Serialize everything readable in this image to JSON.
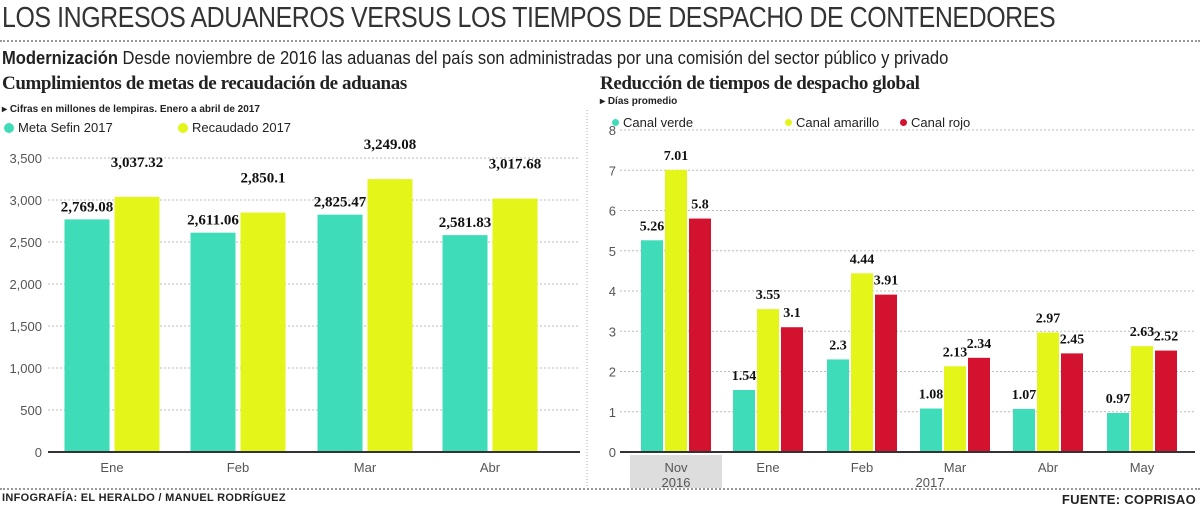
{
  "title": "LOS INGRESOS ADUANEROS VERSUS LOS TIEMPOS DE DESPACHO DE CONTENEDORES",
  "subtitle": {
    "lead": "Modernización",
    "text": "Desde noviembre de 2016 las aduanas del país son administradas por una comisión del sector público y privado"
  },
  "footer": {
    "credit": "INFOGRAFÍA: EL HERALDO / MANUEL RODRÍGUEZ",
    "source": "FUENTE: COPRISAO"
  },
  "colors": {
    "teal": "#3fdcb9",
    "yellow": "#e4f51a",
    "red": "#d3122f"
  },
  "chart_data": [
    {
      "type": "bar",
      "title": "Cumplimientos de metas de recaudación de aduanas",
      "note": "Cifras en millones de lempiras. Enero a abril de 2017",
      "categories": [
        "Ene",
        "Feb",
        "Mar",
        "Abr"
      ],
      "series": [
        {
          "name": "Meta Sefin 2017",
          "color": "#3fdcb9",
          "values": [
            2769.08,
            2611.06,
            2825.47,
            2581.83
          ],
          "labels": [
            "2,769.08",
            "2,611.06",
            "2,825.47",
            "2,581.83"
          ]
        },
        {
          "name": "Recaudado 2017",
          "color": "#e4f51a",
          "values": [
            3037.32,
            2850.1,
            3249.08,
            3017.68
          ],
          "labels": [
            "3,037.32",
            "2,850.1",
            "3,249.08",
            "3,017.68"
          ]
        }
      ],
      "ylim": [
        0,
        3500
      ],
      "yticks": [
        "0",
        "500",
        "1,000",
        "1,500",
        "2,000",
        "2,500",
        "3,000",
        "3,500"
      ],
      "legend": "top-left",
      "grid": true
    },
    {
      "type": "bar",
      "title": "Reducción de tiempos de despacho global",
      "note": "Días promedio",
      "categories": [
        "Nov",
        "Ene",
        "Feb",
        "Mar",
        "Abr",
        "May"
      ],
      "year_labels": {
        "nov": "2016",
        "rest": "2017"
      },
      "series": [
        {
          "name": "Canal verde",
          "color": "#3fdcb9",
          "values": [
            5.26,
            1.54,
            2.3,
            1.08,
            1.07,
            0.97
          ]
        },
        {
          "name": "Canal amarillo",
          "color": "#e4f51a",
          "values": [
            7.01,
            3.55,
            4.44,
            2.13,
            2.97,
            2.63
          ]
        },
        {
          "name": "Canal rojo",
          "color": "#d3122f",
          "values": [
            5.8,
            3.1,
            3.91,
            2.34,
            2.45,
            2.52
          ]
        }
      ],
      "ylim": [
        0,
        8
      ],
      "yticks": [
        "0",
        "1",
        "2",
        "3",
        "4",
        "5",
        "6",
        "7",
        "8"
      ],
      "legend": "top",
      "grid": true
    }
  ]
}
